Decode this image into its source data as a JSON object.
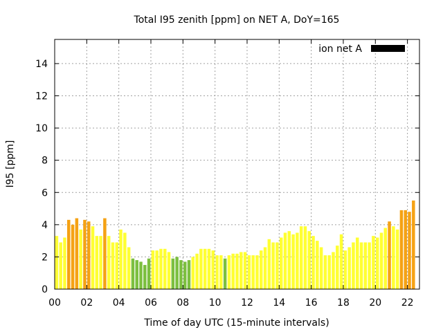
{
  "chart_data": {
    "type": "bar",
    "title": "Total I95 zenith [ppm] on NET A, DoY=165",
    "xlabel": "Time of day UTC (15-minute intervals)",
    "ylabel": "I95 [ppm]",
    "xlim": [
      0,
      22.75
    ],
    "ylim": [
      0,
      15.5
    ],
    "x_ticks": [
      "00",
      "02",
      "04",
      "06",
      "08",
      "10",
      "12",
      "14",
      "16",
      "18",
      "20",
      "22"
    ],
    "y_ticks": [
      0,
      2,
      4,
      6,
      8,
      10,
      12,
      14
    ],
    "grid": true,
    "legend": {
      "position": "top-right",
      "entries": [
        {
          "label": "ion net A",
          "color": "#000000"
        }
      ]
    },
    "colors": {
      "green": "#7cbf3f",
      "yellow": "#ffff33",
      "orange": "#f5a214"
    },
    "bar_interval_hours": 0.25,
    "series": [
      {
        "name": "ion net A",
        "values": [
          3.3,
          2.9,
          3.2,
          4.3,
          4.0,
          4.4,
          3.7,
          4.3,
          4.2,
          3.9,
          3.3,
          3.3,
          4.4,
          3.3,
          2.9,
          2.9,
          3.7,
          3.5,
          2.6,
          1.9,
          1.8,
          1.7,
          1.5,
          1.9,
          2.4,
          2.4,
          2.5,
          2.5,
          2.3,
          1.9,
          2.0,
          1.8,
          1.7,
          1.8,
          2.0,
          2.2,
          2.5,
          2.5,
          2.5,
          2.4,
          2.1,
          2.1,
          1.9,
          2.1,
          2.2,
          2.2,
          2.3,
          2.3,
          2.1,
          2.1,
          2.1,
          2.4,
          2.6,
          3.1,
          2.9,
          2.9,
          3.2,
          3.5,
          3.6,
          3.4,
          3.5,
          3.9,
          3.9,
          3.6,
          3.3,
          3.0,
          2.6,
          2.1,
          2.1,
          2.3,
          2.7,
          3.4,
          2.4,
          2.6,
          2.9,
          3.2,
          2.9,
          2.9,
          2.9,
          3.3,
          3.2,
          3.5,
          3.8,
          4.2,
          3.9,
          3.7,
          4.9,
          4.9,
          4.8,
          5.5
        ],
        "colors": [
          "yellow",
          "yellow",
          "yellow",
          "orange",
          "orange",
          "orange",
          "yellow",
          "orange",
          "orange",
          "yellow",
          "yellow",
          "yellow",
          "orange",
          "yellow",
          "yellow",
          "yellow",
          "yellow",
          "yellow",
          "yellow",
          "green",
          "green",
          "green",
          "green",
          "green",
          "yellow",
          "yellow",
          "yellow",
          "yellow",
          "yellow",
          "green",
          "green",
          "green",
          "green",
          "green",
          "yellow",
          "yellow",
          "yellow",
          "yellow",
          "yellow",
          "yellow",
          "yellow",
          "yellow",
          "green",
          "yellow",
          "yellow",
          "yellow",
          "yellow",
          "yellow",
          "yellow",
          "yellow",
          "yellow",
          "yellow",
          "yellow",
          "yellow",
          "yellow",
          "yellow",
          "yellow",
          "yellow",
          "yellow",
          "yellow",
          "yellow",
          "yellow",
          "yellow",
          "yellow",
          "yellow",
          "yellow",
          "yellow",
          "yellow",
          "yellow",
          "yellow",
          "yellow",
          "yellow",
          "yellow",
          "yellow",
          "yellow",
          "yellow",
          "yellow",
          "yellow",
          "yellow",
          "yellow",
          "yellow",
          "yellow",
          "yellow",
          "orange",
          "yellow",
          "yellow",
          "orange",
          "orange",
          "orange",
          "orange"
        ]
      }
    ]
  }
}
